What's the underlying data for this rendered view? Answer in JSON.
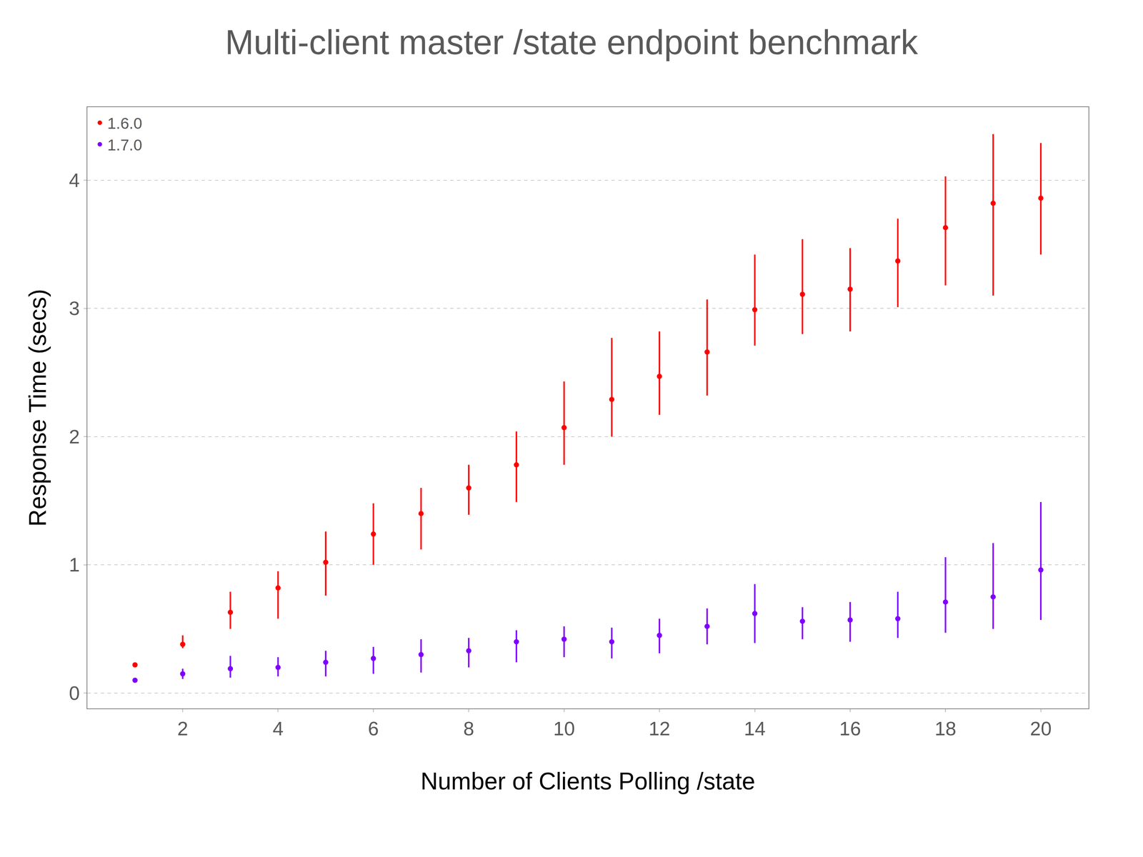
{
  "chart_data": {
    "type": "scatter",
    "title": "Multi-client master /state endpoint benchmark",
    "x_label": "Number of Clients Polling /state",
    "y_label": "Response Time (secs)",
    "x": [
      1,
      2,
      3,
      4,
      5,
      6,
      7,
      8,
      9,
      10,
      11,
      12,
      13,
      14,
      15,
      16,
      17,
      18,
      19,
      20
    ],
    "series": [
      {
        "name": "1.6.0",
        "color": "#ff0000",
        "marker": "circle",
        "values": [
          0.22,
          0.38,
          0.63,
          0.82,
          1.02,
          1.24,
          1.4,
          1.6,
          1.78,
          2.07,
          2.29,
          2.47,
          2.66,
          2.99,
          3.11,
          3.15,
          3.37,
          3.63,
          3.82,
          3.86
        ],
        "error_plus": [
          0.01,
          0.07,
          0.16,
          0.13,
          0.24,
          0.24,
          0.2,
          0.18,
          0.26,
          0.36,
          0.48,
          0.35,
          0.41,
          0.43,
          0.43,
          0.32,
          0.33,
          0.4,
          0.54,
          0.43
        ],
        "error_minus": [
          0.01,
          0.03,
          0.13,
          0.24,
          0.26,
          0.24,
          0.28,
          0.21,
          0.29,
          0.29,
          0.29,
          0.3,
          0.34,
          0.28,
          0.31,
          0.33,
          0.36,
          0.45,
          0.72,
          0.44
        ]
      },
      {
        "name": "1.7.0",
        "color": "#7f00ff",
        "marker": "circle",
        "values": [
          0.1,
          0.15,
          0.19,
          0.2,
          0.24,
          0.27,
          0.3,
          0.33,
          0.4,
          0.42,
          0.4,
          0.45,
          0.52,
          0.62,
          0.56,
          0.57,
          0.58,
          0.71,
          0.75,
          0.96
        ],
        "error_plus": [
          0.01,
          0.04,
          0.1,
          0.08,
          0.09,
          0.09,
          0.12,
          0.1,
          0.09,
          0.1,
          0.11,
          0.13,
          0.14,
          0.23,
          0.11,
          0.14,
          0.21,
          0.35,
          0.42,
          0.53
        ],
        "error_minus": [
          0.01,
          0.04,
          0.07,
          0.07,
          0.11,
          0.12,
          0.14,
          0.13,
          0.16,
          0.14,
          0.13,
          0.14,
          0.14,
          0.23,
          0.14,
          0.17,
          0.15,
          0.24,
          0.25,
          0.39
        ]
      }
    ],
    "xlim": [
      0,
      21
    ],
    "xticks": [
      2,
      4,
      6,
      8,
      10,
      12,
      14,
      16,
      18,
      20
    ],
    "ylim": [
      -0.12,
      4.57
    ],
    "yticks": [
      0,
      1,
      2,
      3,
      4
    ],
    "grid": true,
    "legend": "top left"
  }
}
